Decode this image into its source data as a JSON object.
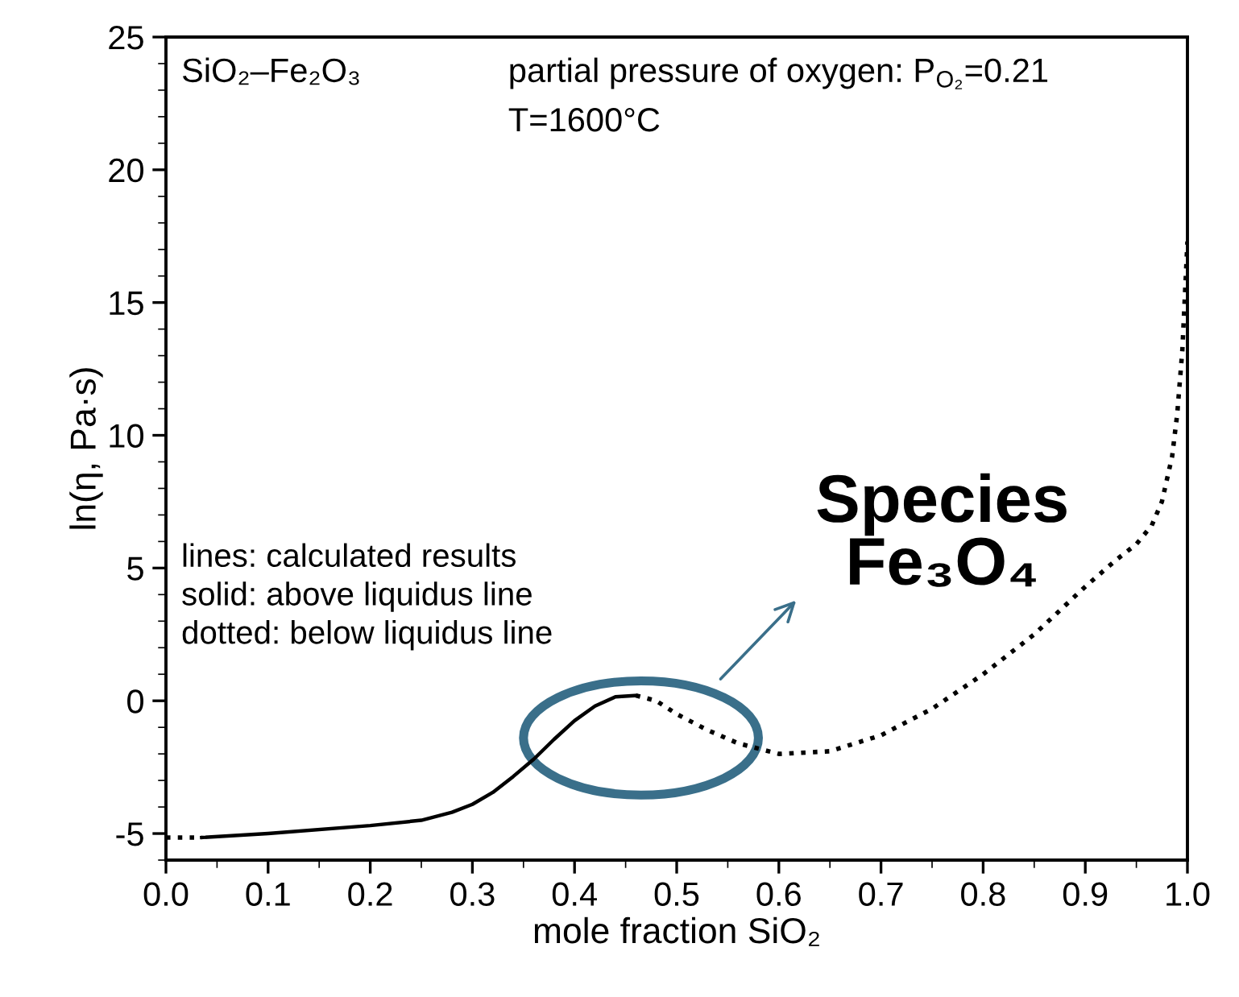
{
  "chart_data": {
    "type": "line",
    "xlabel": "mole fraction SiO₂",
    "ylabel": "ln(η, Pa·s)",
    "xlim": [
      0,
      1
    ],
    "ylim": [
      -6,
      25
    ],
    "xticks": [
      {
        "value": 0,
        "label": "0.0"
      },
      0.1,
      0.2,
      0.3,
      0.4,
      0.5,
      0.6,
      0.7,
      0.8,
      0.9,
      {
        "value": 1,
        "label": "1.0"
      }
    ],
    "yticks": [
      -5,
      0,
      5,
      10,
      15,
      20,
      25
    ],
    "grid": false,
    "legend": false,
    "marker": "none",
    "series": [
      {
        "color": "#000000",
        "line_style": "dotted",
        "x": [
          0.0,
          0.035
        ],
        "values": [
          -5.15,
          -5.15
        ]
      },
      {
        "color": "#000000",
        "line_style": "solid",
        "x": [
          0.035,
          0.1,
          0.2,
          0.25,
          0.28,
          0.3,
          0.32,
          0.34,
          0.36,
          0.38,
          0.4,
          0.42,
          0.44,
          0.46
        ],
        "values": [
          -5.15,
          -5.0,
          -4.7,
          -4.5,
          -4.2,
          -3.9,
          -3.45,
          -2.85,
          -2.2,
          -1.45,
          -0.75,
          -0.2,
          0.15,
          0.2
        ]
      },
      {
        "color": "#000000",
        "line_style": "dotted",
        "x": [
          0.46,
          0.48,
          0.5,
          0.53,
          0.56,
          0.6,
          0.65,
          0.7,
          0.75,
          0.8,
          0.85,
          0.9,
          0.93,
          0.95,
          0.965,
          0.975,
          0.985,
          0.99,
          0.995,
          1.0
        ],
        "values": [
          0.2,
          0.0,
          -0.5,
          -1.1,
          -1.6,
          -2.0,
          -1.9,
          -1.3,
          -0.3,
          1.0,
          2.5,
          4.3,
          5.3,
          5.9,
          6.6,
          7.5,
          9.2,
          10.8,
          13.2,
          17.3
        ]
      }
    ],
    "annotations": [
      "SiO₂–Fe₂O₃",
      "partial pressure of oxygen: P$_{O₂}$=0.21",
      "T=1600°C",
      "lines: calculated results\nsolid: above liquidus line\ndotted: below liquidus line",
      "Species\nFe₃O₄"
    ]
  }
}
